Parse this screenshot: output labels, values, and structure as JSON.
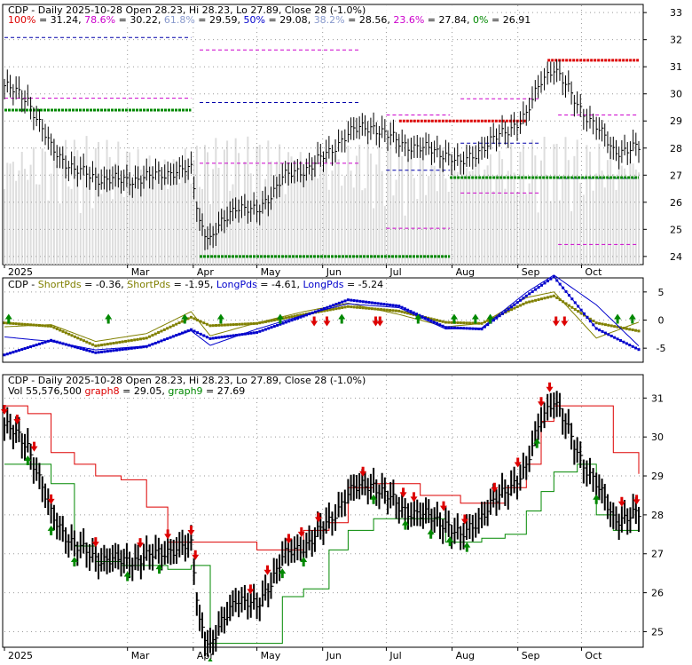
{
  "months": [
    "2025",
    "Mar",
    "Apr",
    "May",
    "Jun",
    "Jul",
    "Aug",
    "Sep",
    "Oct"
  ],
  "colors": {
    "up": "#008800",
    "down": "#dd0000",
    "blue": "#0000cc",
    "olive": "#808000",
    "grid": "#999999",
    "text": "#000000",
    "volume": "#dddddd",
    "fib_red": "#cc0000",
    "fib_pink": "#cc00cc",
    "fib_blue": "#0000aa",
    "fib_green": "#008800"
  },
  "panel1": {
    "header": "CDP - Daily 2025-10-28 Open 28.23, Hi 28.23, Lo 27.89, Close 28 (-1.0%)",
    "fib_legend": [
      {
        "label": "100%",
        "value": "31.24",
        "color": "#dd0000"
      },
      {
        "label": "78.6%",
        "value": "30.22",
        "color": "#cc00cc"
      },
      {
        "label": "61.8%",
        "value": "29.59",
        "color": "#8899cc"
      },
      {
        "label": "50%",
        "value": "29.08",
        "color": "#0000cc"
      },
      {
        "label": "38.2%",
        "value": "28.56",
        "color": "#8899cc"
      },
      {
        "label": "23.6%",
        "value": "27.84",
        "color": "#cc00cc"
      },
      {
        "label": "0%",
        "value": "26.91",
        "color": "#008800"
      }
    ],
    "yticks": [
      24,
      25,
      26,
      27,
      28,
      29,
      30,
      31,
      32,
      33
    ]
  },
  "panel2": {
    "header": [
      {
        "text": "CDP - ",
        "color": "#000000"
      },
      {
        "text": "ShortPds",
        "color": "#808000"
      },
      {
        "text": " = -0.36, ",
        "color": "#000000"
      },
      {
        "text": "ShortPds",
        "color": "#808000"
      },
      {
        "text": " = -1.95, ",
        "color": "#000000"
      },
      {
        "text": "LongPds",
        "color": "#0000cc"
      },
      {
        "text": " = -4.61, ",
        "color": "#000000"
      },
      {
        "text": "LongPds",
        "color": "#0000cc"
      },
      {
        "text": " = -5.24",
        "color": "#000000"
      }
    ],
    "yticks": [
      5,
      0,
      -5
    ]
  },
  "panel3": {
    "header1": "CDP - Daily 2025-10-28 Open 28.23, Hi 28.23, Lo 27.89, Close 28 (-1.0%)",
    "header2": [
      {
        "text": "Vol 55,576,500 ",
        "color": "#000000"
      },
      {
        "text": "graph8",
        "color": "#dd0000"
      },
      {
        "text": " = 29.05, ",
        "color": "#000000"
      },
      {
        "text": "graph9",
        "color": "#008800"
      },
      {
        "text": " = 27.69",
        "color": "#000000"
      }
    ],
    "yticks": [
      25,
      26,
      27,
      28,
      29,
      30,
      31
    ]
  },
  "chart_data": [
    {
      "type": "line",
      "title": "CDP - Daily 2025-10-28 Open 28.23, Hi 28.23, Lo 27.89, Close 28 (-1.0%)",
      "x": [
        "2025-01-02",
        "2025-01-13",
        "2025-01-24",
        "2025-02-04",
        "2025-02-14",
        "2025-02-26",
        "2025-03-10",
        "2025-03-20",
        "2025-03-31",
        "2025-04-04",
        "2025-04-09",
        "2025-04-21",
        "2025-05-01",
        "2025-05-13",
        "2025-05-23",
        "2025-06-04",
        "2025-06-13",
        "2025-06-25",
        "2025-07-07",
        "2025-07-17",
        "2025-07-29",
        "2025-08-05",
        "2025-08-15",
        "2025-08-26",
        "2025-09-05",
        "2025-09-12",
        "2025-09-18",
        "2025-09-29",
        "2025-10-08",
        "2025-10-16",
        "2025-10-28"
      ],
      "series": [
        {
          "values": [
            30.3,
            29.8,
            28.0,
            27.2,
            26.9,
            26.8,
            26.9,
            27.1,
            27.2,
            25.3,
            24.6,
            25.9,
            25.6,
            26.9,
            27.2,
            27.8,
            28.6,
            28.8,
            28.2,
            28.0,
            27.8,
            27.4,
            28.0,
            28.6,
            29.2,
            30.5,
            31.0,
            29.6,
            28.8,
            27.9,
            28.0
          ]
        }
      ],
      "ylim": [
        23.7,
        33.3
      ],
      "fib_levels": [
        {
          "label": "100%",
          "value": 31.24
        },
        {
          "label": "78.6%",
          "value": 30.22
        },
        {
          "label": "61.8%",
          "value": 29.59
        },
        {
          "label": "50%",
          "value": 29.08
        },
        {
          "label": "38.2%",
          "value": 28.56
        },
        {
          "label": "23.6%",
          "value": 27.84
        },
        {
          "label": "0%",
          "value": 26.91
        }
      ],
      "support_resistance": [
        {
          "from": "2025-01-02",
          "to": "2025-03-31",
          "value": 29.4
        },
        {
          "from": "2025-04-04",
          "to": "2025-07-31",
          "value": 24.0
        },
        {
          "from": "2025-07-07",
          "to": "2025-09-05",
          "value": 29.0
        },
        {
          "from": "2025-07-31",
          "to": "2025-10-28",
          "value": 26.91
        },
        {
          "from": "2025-09-15",
          "to": "2025-10-28",
          "value": 31.24
        }
      ]
    },
    {
      "type": "line",
      "ylim": [
        -7.5,
        7.5
      ],
      "x": [
        "2025-01-02",
        "2025-01-24",
        "2025-02-14",
        "2025-03-10",
        "2025-03-31",
        "2025-04-09",
        "2025-05-01",
        "2025-05-23",
        "2025-06-13",
        "2025-07-07",
        "2025-07-29",
        "2025-08-15",
        "2025-09-05",
        "2025-09-18",
        "2025-10-08",
        "2025-10-28"
      ],
      "series": [
        {
          "name": "ShortPds",
          "values": [
            -1.2,
            -0.8,
            -3.8,
            -2.4,
            1.5,
            -2.8,
            -0.5,
            1.5,
            3.0,
            1.0,
            -1.2,
            -0.6,
            4.0,
            5.0,
            -3.2,
            -0.36
          ]
        },
        {
          "name": "ShortPds",
          "values": [
            -0.5,
            -1.1,
            -4.6,
            -3.2,
            0.5,
            -1.0,
            -0.6,
            1.0,
            2.4,
            1.6,
            -0.4,
            -0.6,
            3.1,
            4.3,
            -0.5,
            -1.95
          ]
        },
        {
          "name": "LongPds",
          "values": [
            -3.0,
            -3.8,
            -5.3,
            -4.6,
            -1.9,
            -4.5,
            -1.6,
            0.9,
            2.9,
            2.2,
            -1.6,
            -1.4,
            4.9,
            8.0,
            2.7,
            -4.61
          ]
        },
        {
          "name": "LongPds",
          "values": [
            -6.2,
            -3.6,
            -5.8,
            -4.7,
            -1.7,
            -3.3,
            -2.2,
            0.7,
            3.6,
            2.5,
            -1.3,
            -1.6,
            4.3,
            7.7,
            -1.5,
            -5.24
          ]
        }
      ]
    },
    {
      "type": "line",
      "title": "CDP - Daily 2025-10-28 Open 28.23, Hi 28.23, Lo 27.89, Close 28 (-1.0%)",
      "ylim": [
        24.6,
        31.6
      ],
      "x": [
        "2025-01-02",
        "2025-01-13",
        "2025-01-24",
        "2025-02-04",
        "2025-02-14",
        "2025-02-26",
        "2025-03-10",
        "2025-03-20",
        "2025-03-31",
        "2025-04-04",
        "2025-04-09",
        "2025-04-21",
        "2025-05-01",
        "2025-05-13",
        "2025-05-23",
        "2025-06-04",
        "2025-06-13",
        "2025-06-25",
        "2025-07-07",
        "2025-07-17",
        "2025-07-29",
        "2025-08-05",
        "2025-08-15",
        "2025-08-26",
        "2025-09-05",
        "2025-09-12",
        "2025-09-18",
        "2025-09-29",
        "2025-10-08",
        "2025-10-16",
        "2025-10-28"
      ],
      "series": [
        {
          "name": "Close",
          "values": [
            30.3,
            29.8,
            28.0,
            27.2,
            26.9,
            26.8,
            26.9,
            27.1,
            27.2,
            25.3,
            24.6,
            25.9,
            25.6,
            26.9,
            27.2,
            27.8,
            28.6,
            28.8,
            28.2,
            28.0,
            27.8,
            27.4,
            28.0,
            28.6,
            29.2,
            30.5,
            31.0,
            29.6,
            28.8,
            27.9,
            28.0
          ]
        },
        {
          "name": "graph8",
          "values": [
            30.8,
            30.6,
            29.6,
            29.3,
            29.0,
            28.9,
            28.2,
            27.3,
            27.3,
            27.3,
            27.3,
            27.3,
            27.1,
            27.1,
            27.6,
            27.8,
            28.7,
            28.8,
            28.8,
            28.5,
            28.5,
            28.3,
            28.3,
            28.7,
            29.3,
            30.4,
            30.8,
            30.8,
            30.8,
            29.6,
            29.05
          ]
        },
        {
          "name": "graph9",
          "values": [
            29.3,
            29.3,
            28.8,
            27.2,
            26.8,
            26.7,
            26.7,
            26.6,
            26.7,
            26.7,
            24.7,
            24.7,
            24.7,
            25.9,
            26.1,
            27.1,
            27.6,
            27.9,
            27.9,
            27.9,
            27.3,
            27.3,
            27.4,
            27.5,
            28.1,
            28.6,
            29.1,
            29.3,
            28.0,
            27.6,
            27.69
          ]
        }
      ],
      "arrows_up": [
        "2025-01-13",
        "2025-01-24",
        "2025-02-04",
        "2025-03-01",
        "2025-03-16",
        "2025-04-09",
        "2025-05-13",
        "2025-05-23",
        "2025-06-25",
        "2025-07-10",
        "2025-07-22",
        "2025-07-31",
        "2025-08-08",
        "2025-09-10",
        "2025-10-08"
      ],
      "arrows_down": [
        "2025-01-02",
        "2025-01-08",
        "2025-01-16",
        "2025-01-24",
        "2025-02-14",
        "2025-03-07",
        "2025-03-20",
        "2025-03-31",
        "2025-04-02",
        "2025-04-28",
        "2025-05-06",
        "2025-05-16",
        "2025-05-22",
        "2025-05-30",
        "2025-06-20",
        "2025-07-09",
        "2025-07-14",
        "2025-07-28",
        "2025-08-07",
        "2025-08-21",
        "2025-09-01",
        "2025-09-12",
        "2025-09-16",
        "2025-10-20",
        "2025-10-27"
      ]
    }
  ]
}
